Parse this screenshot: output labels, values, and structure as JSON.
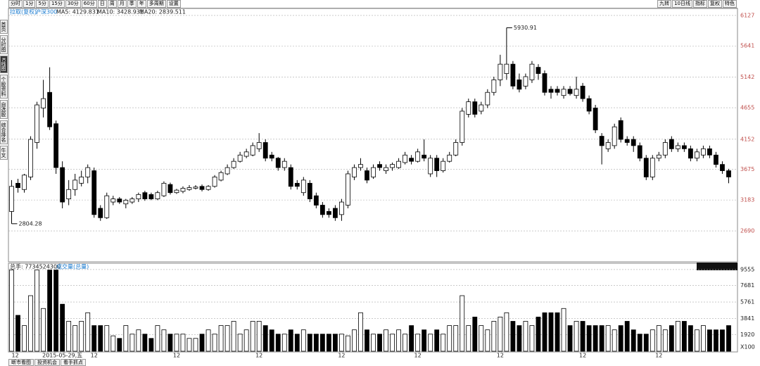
{
  "toolbar": {
    "left": [
      "分时",
      "1分",
      "5分",
      "15分",
      "30分",
      "60分",
      "日",
      "周",
      "月",
      "季",
      "年",
      "多周期",
      "设置"
    ],
    "right": [
      "九转",
      "10日线",
      "指标",
      "复权",
      "特色"
    ]
  },
  "sidebar": [
    "首页",
    "分时图",
    "K线图",
    "个股资料",
    "自选股",
    "综合排名",
    "牛叉"
  ],
  "footer_tabs": [
    "断市看图",
    "投资机会",
    "看手抓点"
  ],
  "chart_data": [
    {
      "type": "candlestick",
      "subtitle": "拉取(复权)",
      "title": "沪深300",
      "indicators": [
        "MA5: 4129.831",
        "MA10: 3428.931",
        "MA20: 2839.511"
      ],
      "up_color": "#ffffff",
      "down_color": "#000000",
      "grid": true,
      "categories": [
        "12",
        null,
        null,
        null,
        null,
        null,
        null,
        null,
        "2015-05-29,五",
        null,
        null,
        null,
        null,
        "12",
        null,
        null,
        null,
        null,
        null,
        null,
        null,
        null,
        null,
        null,
        null,
        null,
        "12",
        null,
        null,
        null,
        null,
        null,
        null,
        null,
        null,
        null,
        null,
        null,
        null,
        "12",
        null,
        null,
        null,
        null,
        null,
        null,
        null,
        null,
        null,
        null,
        null,
        null,
        "12",
        null,
        null,
        null,
        null,
        null,
        null,
        null,
        null,
        null,
        null,
        null,
        "12",
        null,
        null,
        null,
        null,
        null,
        null,
        null,
        null,
        null,
        null,
        null,
        null,
        "12",
        null,
        null,
        null,
        null,
        null,
        null,
        null,
        null,
        null,
        null,
        null,
        null,
        "12",
        null,
        null,
        null,
        null,
        null,
        null,
        null,
        null,
        null,
        null,
        null,
        "12",
        null,
        null,
        null,
        null,
        null,
        null,
        null,
        null,
        null,
        null,
        null
      ],
      "open": [
        3000,
        3450,
        3350,
        3550,
        4100,
        4650,
        4900,
        4400,
        3700,
        3200,
        3350,
        3450,
        3550,
        3650,
        3050,
        2900,
        3150,
        3200,
        3120,
        3150,
        3200,
        3300,
        3270,
        3200,
        3250,
        3430,
        3300,
        3320,
        3350,
        3370,
        3400,
        3350,
        3400,
        3500,
        3600,
        3700,
        3800,
        3880,
        3900,
        4000,
        4100,
        3900,
        3850,
        3700,
        3700,
        3450,
        3300,
        3450,
        3250,
        3100,
        3000,
        3050,
        2950,
        3100,
        3550,
        3700,
        3650,
        3550,
        3750,
        3650,
        3700,
        3700,
        3780,
        3850,
        3800,
        3900,
        3600,
        3850,
        3650,
        3800,
        3900,
        4100,
        4550,
        4750,
        4600,
        4700,
        4900,
        5100,
        5200,
        5350,
        5100,
        5000,
        5100,
        5300,
        5200,
        4950,
        4950,
        4850,
        4950,
        4850,
        5000,
        4800,
        4650,
        4200,
        4000,
        4050,
        4450,
        4150,
        4150,
        4050,
        3850,
        3550,
        3850,
        3900,
        4150,
        4000,
        4050,
        4000,
        3850,
        3900,
        4000,
        3900,
        3750,
        3650
      ],
      "high": [
        3500,
        3520,
        3600,
        4200,
        4750,
        5100,
        5300,
        4450,
        3800,
        3500,
        3600,
        3650,
        3750,
        3700,
        3100,
        3300,
        3250,
        3230,
        3200,
        3230,
        3300,
        3330,
        3300,
        3330,
        3480,
        3460,
        3360,
        3400,
        3420,
        3420,
        3430,
        3420,
        3580,
        3650,
        3750,
        3850,
        3950,
        4000,
        4100,
        4250,
        4150,
        3950,
        3870,
        3850,
        3750,
        3500,
        3550,
        3500,
        3300,
        3150,
        3050,
        3100,
        3200,
        3650,
        3750,
        3850,
        3700,
        3750,
        3800,
        3750,
        3780,
        3850,
        3950,
        3900,
        4000,
        4150,
        3900,
        3900,
        3850,
        3950,
        4150,
        4650,
        4800,
        4800,
        4750,
        4950,
        5150,
        5500,
        5930.91,
        5400,
        5200,
        5200,
        5400,
        5350,
        5250,
        5000,
        5000,
        5000,
        5000,
        5150,
        5050,
        4850,
        4700,
        4250,
        4150,
        4400,
        4500,
        4200,
        4200,
        4100,
        3900,
        3900,
        3950,
        4150,
        4200,
        4100,
        4100,
        4050,
        4000,
        4050,
        4050,
        3950,
        3800,
        3680
      ],
      "low": [
        2804.28,
        3300,
        3300,
        3500,
        4000,
        4500,
        4300,
        3600,
        3050,
        3100,
        3250,
        3400,
        3450,
        2900,
        2850,
        2880,
        3100,
        3120,
        3050,
        3120,
        3150,
        3170,
        3180,
        3180,
        3230,
        3270,
        3280,
        3290,
        3330,
        3350,
        3320,
        3330,
        3380,
        3480,
        3580,
        3680,
        3780,
        3850,
        3880,
        3950,
        3800,
        3800,
        3650,
        3650,
        3350,
        3350,
        3250,
        3150,
        3050,
        2900,
        2900,
        2850,
        2850,
        3050,
        3500,
        3650,
        3450,
        3520,
        3650,
        3600,
        3650,
        3680,
        3750,
        3750,
        3780,
        3800,
        3550,
        3550,
        3620,
        3780,
        3880,
        4050,
        4500,
        4500,
        4550,
        4650,
        4850,
        5000,
        5100,
        4950,
        4900,
        4950,
        5050,
        5100,
        4850,
        4800,
        4850,
        4800,
        4850,
        4800,
        4750,
        4550,
        4250,
        3750,
        3950,
        4000,
        4100,
        4050,
        3950,
        3800,
        3500,
        3500,
        3800,
        3850,
        3950,
        3950,
        3950,
        3800,
        3800,
        3850,
        3850,
        3700,
        3600,
        3450
      ],
      "close": [
        3400,
        3380,
        3580,
        4150,
        4700,
        4800,
        4350,
        3700,
        3150,
        3350,
        3500,
        3550,
        3700,
        2950,
        2900,
        3250,
        3200,
        3150,
        3180,
        3200,
        3270,
        3200,
        3200,
        3300,
        3450,
        3300,
        3340,
        3370,
        3380,
        3390,
        3350,
        3400,
        3550,
        3620,
        3700,
        3800,
        3900,
        3950,
        4050,
        4100,
        3850,
        3850,
        3700,
        3800,
        3400,
        3400,
        3500,
        3200,
        3100,
        2950,
        2950,
        2900,
        3150,
        3600,
        3700,
        3750,
        3500,
        3700,
        3700,
        3700,
        3750,
        3800,
        3900,
        3800,
        3950,
        3850,
        3850,
        3650,
        3800,
        3900,
        4100,
        4600,
        4750,
        4550,
        4700,
        4900,
        5100,
        5350,
        5350,
        5000,
        4950,
        5150,
        5350,
        5200,
        4900,
        4900,
        4900,
        4950,
        4880,
        4950,
        4800,
        4600,
        4300,
        4050,
        4100,
        4350,
        4150,
        4100,
        4050,
        3850,
        3550,
        3850,
        3900,
        4100,
        4000,
        4050,
        4000,
        3850,
        3950,
        4000,
        3900,
        3750,
        3650,
        3550
      ],
      "ylim": [
        2196,
        6239
      ],
      "yticks": [
        2690,
        3183,
        3675,
        4152,
        4655,
        5142,
        5641,
        6127
      ]
    },
    {
      "type": "bar",
      "title": "总手: 7734524300",
      "subtitle": "成交量(总量)",
      "y_unit": "X100",
      "grid": true,
      "values": [
        9500,
        4200,
        3000,
        6500,
        9500,
        5000,
        9500,
        9500,
        5500,
        3500,
        3000,
        3500,
        4500,
        3000,
        3000,
        3000,
        1800,
        1500,
        3000,
        2000,
        2500,
        2000,
        1500,
        3000,
        2500,
        2000,
        2000,
        2000,
        1500,
        1500,
        2000,
        2500,
        2000,
        3000,
        3000,
        3500,
        2000,
        2500,
        3500,
        3500,
        3000,
        2500,
        2000,
        2000,
        2500,
        2000,
        2500,
        2000,
        2000,
        2000,
        2000,
        2000,
        2000,
        1800,
        2500,
        4500,
        2500,
        2000,
        2000,
        2500,
        2000,
        2500,
        2000,
        3000,
        2000,
        2500,
        2000,
        2500,
        2000,
        3000,
        3000,
        6500,
        3000,
        4000,
        3000,
        2500,
        3500,
        4000,
        4500,
        3500,
        3000,
        3500,
        3000,
        4000,
        4500,
        4500,
        4500,
        5000,
        3000,
        3500,
        3500,
        3000,
        3000,
        3000,
        3000,
        2500,
        3000,
        3500,
        2500,
        2000,
        2000,
        2500,
        3000,
        2500,
        3000,
        3500,
        3500,
        3000,
        2500,
        3000,
        2500,
        2500,
        2500,
        3000
      ],
      "ylim": [
        0,
        10127
      ],
      "yticks": [
        1920,
        3841,
        5761,
        7681,
        9555
      ]
    }
  ]
}
